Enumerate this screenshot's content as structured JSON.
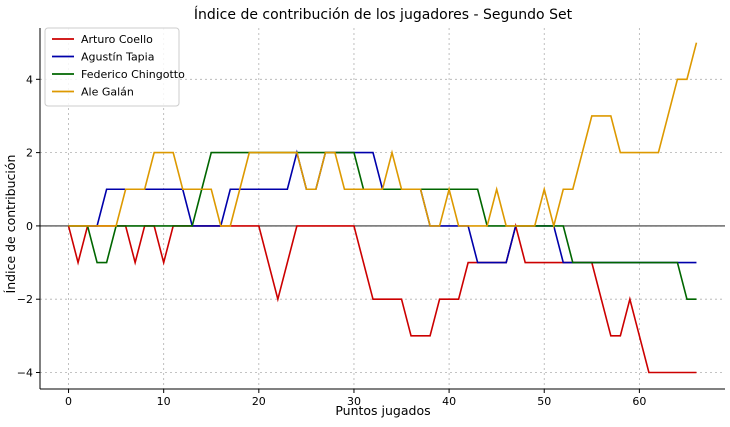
{
  "chart_data": {
    "type": "line",
    "title": "Índice de contribución de los jugadores - Segundo Set",
    "xlabel": "Puntos jugados",
    "ylabel": "Índice de contribución",
    "xlim": [
      -3,
      69
    ],
    "ylim": [
      -4.45,
      5.4
    ],
    "xticks": [
      0,
      10,
      20,
      30,
      40,
      50,
      60
    ],
    "yticks": [
      -4,
      -2,
      0,
      2,
      4
    ],
    "grid": true,
    "zero_line": true,
    "legend_position": "top-left",
    "x": [
      0,
      1,
      2,
      3,
      4,
      5,
      6,
      7,
      8,
      9,
      10,
      11,
      12,
      13,
      14,
      15,
      16,
      17,
      18,
      19,
      20,
      21,
      22,
      23,
      24,
      25,
      26,
      27,
      28,
      29,
      30,
      31,
      32,
      33,
      34,
      35,
      36,
      37,
      38,
      39,
      40,
      41,
      42,
      43,
      44,
      45,
      46,
      47,
      48,
      49,
      50,
      51,
      52,
      53,
      54,
      55,
      56,
      57,
      58,
      59,
      60,
      61,
      62,
      63,
      64,
      65,
      66
    ],
    "series": [
      {
        "name": "Arturo Coello",
        "color": "#cc0000",
        "values": [
          0,
          -1,
          0,
          0,
          0,
          0,
          0,
          -1,
          0,
          0,
          -1,
          0,
          0,
          0,
          0,
          0,
          0,
          0,
          0,
          0,
          0,
          -1,
          -2,
          -1,
          0,
          0,
          0,
          0,
          0,
          0,
          0,
          -1,
          -2,
          -2,
          -2,
          -2,
          -3,
          -3,
          -3,
          -2,
          -2,
          -2,
          -1,
          -1,
          -1,
          -1,
          -1,
          0,
          -1,
          -1,
          -1,
          -1,
          -1,
          -1,
          -1,
          -1,
          -2,
          -3,
          -3,
          -2,
          -3,
          -4,
          -4,
          -4,
          -4,
          -4,
          -4
        ]
      },
      {
        "name": "Agustín Tapia",
        "color": "#0000aa",
        "values": [
          0,
          0,
          0,
          0,
          1,
          1,
          1,
          1,
          1,
          1,
          1,
          1,
          1,
          0,
          0,
          0,
          0,
          1,
          1,
          1,
          1,
          1,
          1,
          1,
          2,
          1,
          1,
          2,
          2,
          2,
          2,
          2,
          2,
          1,
          1,
          1,
          1,
          1,
          0,
          0,
          0,
          0,
          0,
          -1,
          -1,
          -1,
          -1,
          0,
          0,
          0,
          0,
          0,
          -1,
          -1,
          -1,
          -1,
          -1,
          -1,
          -1,
          -1,
          -1,
          -1,
          -1,
          -1,
          -1,
          -1,
          -1
        ]
      },
      {
        "name": "Federico Chingotto",
        "color": "#006600",
        "values": [
          0,
          0,
          0,
          -1,
          -1,
          0,
          0,
          0,
          0,
          0,
          0,
          0,
          0,
          0,
          1,
          2,
          2,
          2,
          2,
          2,
          2,
          2,
          2,
          2,
          2,
          2,
          2,
          2,
          2,
          2,
          2,
          1,
          1,
          1,
          1,
          1,
          1,
          1,
          1,
          1,
          1,
          1,
          1,
          1,
          0,
          0,
          0,
          0,
          0,
          0,
          0,
          0,
          0,
          -1,
          -1,
          -1,
          -1,
          -1,
          -1,
          -1,
          -1,
          -1,
          -1,
          -1,
          -1,
          -2,
          -2
        ]
      },
      {
        "name": "Ale Galán",
        "color": "#dd9900",
        "values": [
          0,
          0,
          0,
          0,
          0,
          0,
          1,
          1,
          1,
          2,
          2,
          2,
          1,
          1,
          1,
          1,
          0,
          0,
          1,
          2,
          2,
          2,
          2,
          2,
          2,
          1,
          1,
          2,
          2,
          1,
          1,
          1,
          1,
          1,
          2,
          1,
          1,
          1,
          0,
          0,
          1,
          0,
          0,
          0,
          0,
          1,
          0,
          0,
          0,
          0,
          1,
          0,
          1,
          1,
          2,
          3,
          3,
          3,
          2,
          2,
          2,
          2,
          2,
          3,
          4,
          4,
          5
        ]
      }
    ]
  }
}
